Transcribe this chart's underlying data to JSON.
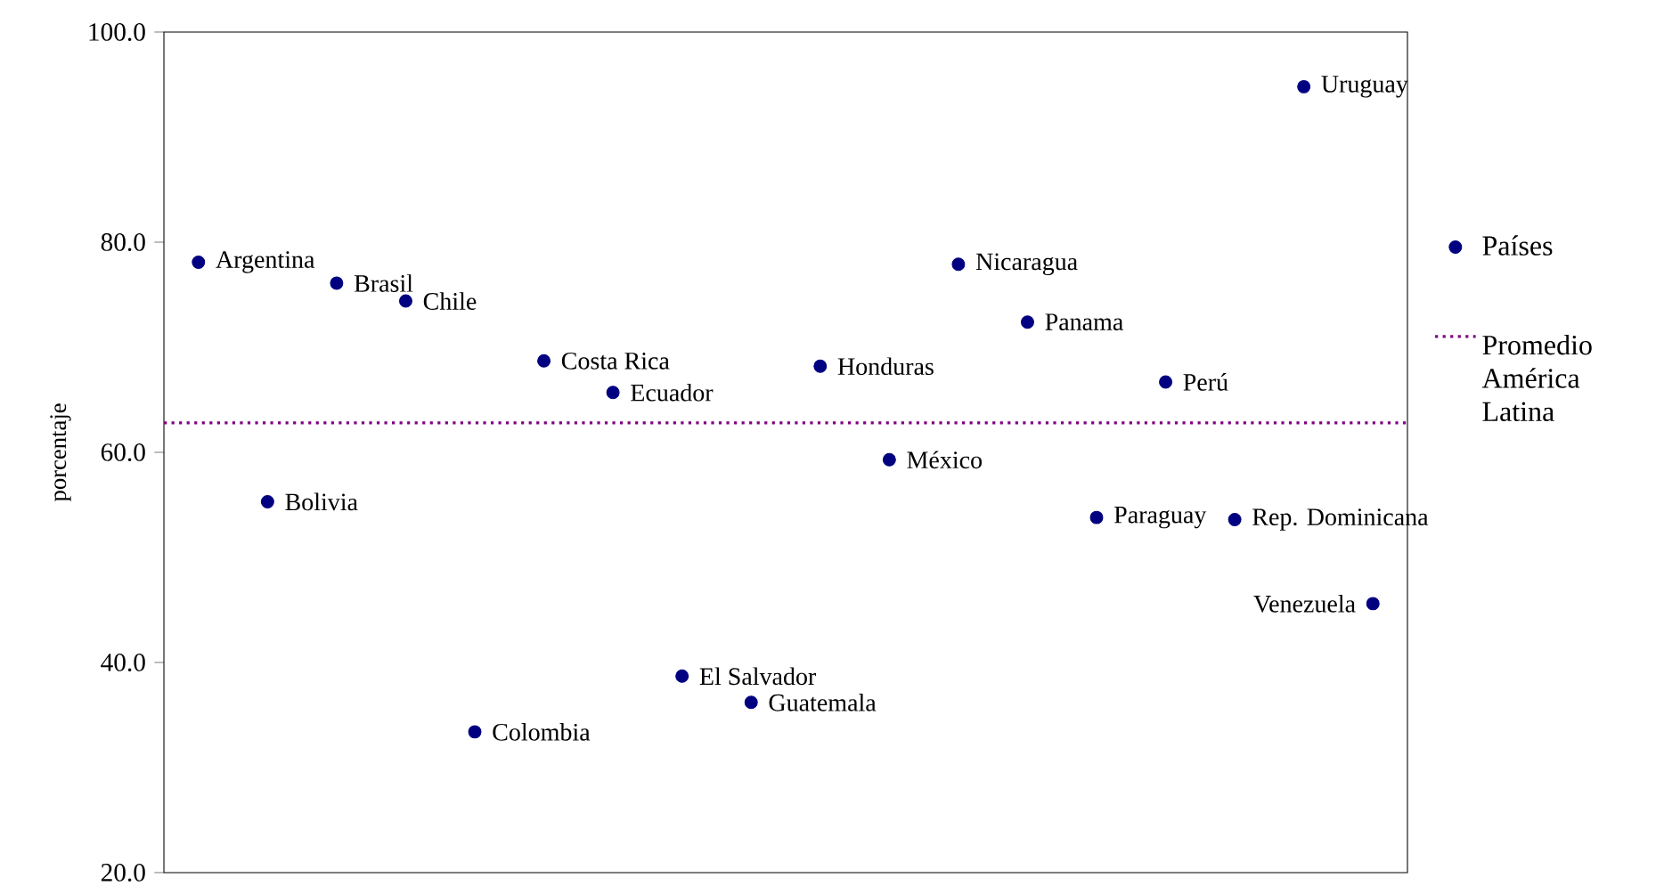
{
  "chart_data": {
    "type": "scatter",
    "ylabel": "porcentaje",
    "categories": [
      null,
      null,
      null,
      null,
      null,
      null,
      null,
      null,
      null,
      null,
      null,
      null,
      null,
      null,
      null,
      null,
      null,
      null
    ],
    "series": [
      {
        "name": "Países",
        "color": "#000080",
        "values": [
          78.1,
          55.3,
          76.1,
          74.4,
          33.4,
          68.7,
          65.7,
          38.7,
          36.2,
          68.2,
          59.3,
          77.9,
          72.4,
          53.8,
          66.7,
          53.6,
          94.8,
          45.6
        ],
        "value_labels": [
          "Argentina",
          "Bolivia",
          "Brasil",
          "Chile",
          "Colombia",
          "Costa Rica",
          "Ecuador",
          "El Salvador",
          "Guatemala",
          "Honduras",
          "México",
          "Nicaragua",
          "Panama",
          "Paraguay",
          "Perú",
          "Rep. Dominicana",
          "Uruguay",
          "Venezuela"
        ]
      }
    ],
    "ylim": [
      20,
      100
    ],
    "yticks": [
      {
        "value": 20,
        "label": "20.0"
      },
      {
        "value": 40,
        "label": "40.0"
      },
      {
        "value": 60,
        "label": "60.0"
      },
      {
        "value": 80,
        "label": "80.0"
      },
      {
        "value": 100,
        "label": "100.0"
      }
    ],
    "ref_lines": [
      {
        "axis": "y",
        "value": 62.8,
        "label": "Promedio América Latina",
        "color": "#800080",
        "line_style": "dotted"
      }
    ],
    "legend": "right",
    "marker": "circle",
    "tick_labels": "y"
  }
}
